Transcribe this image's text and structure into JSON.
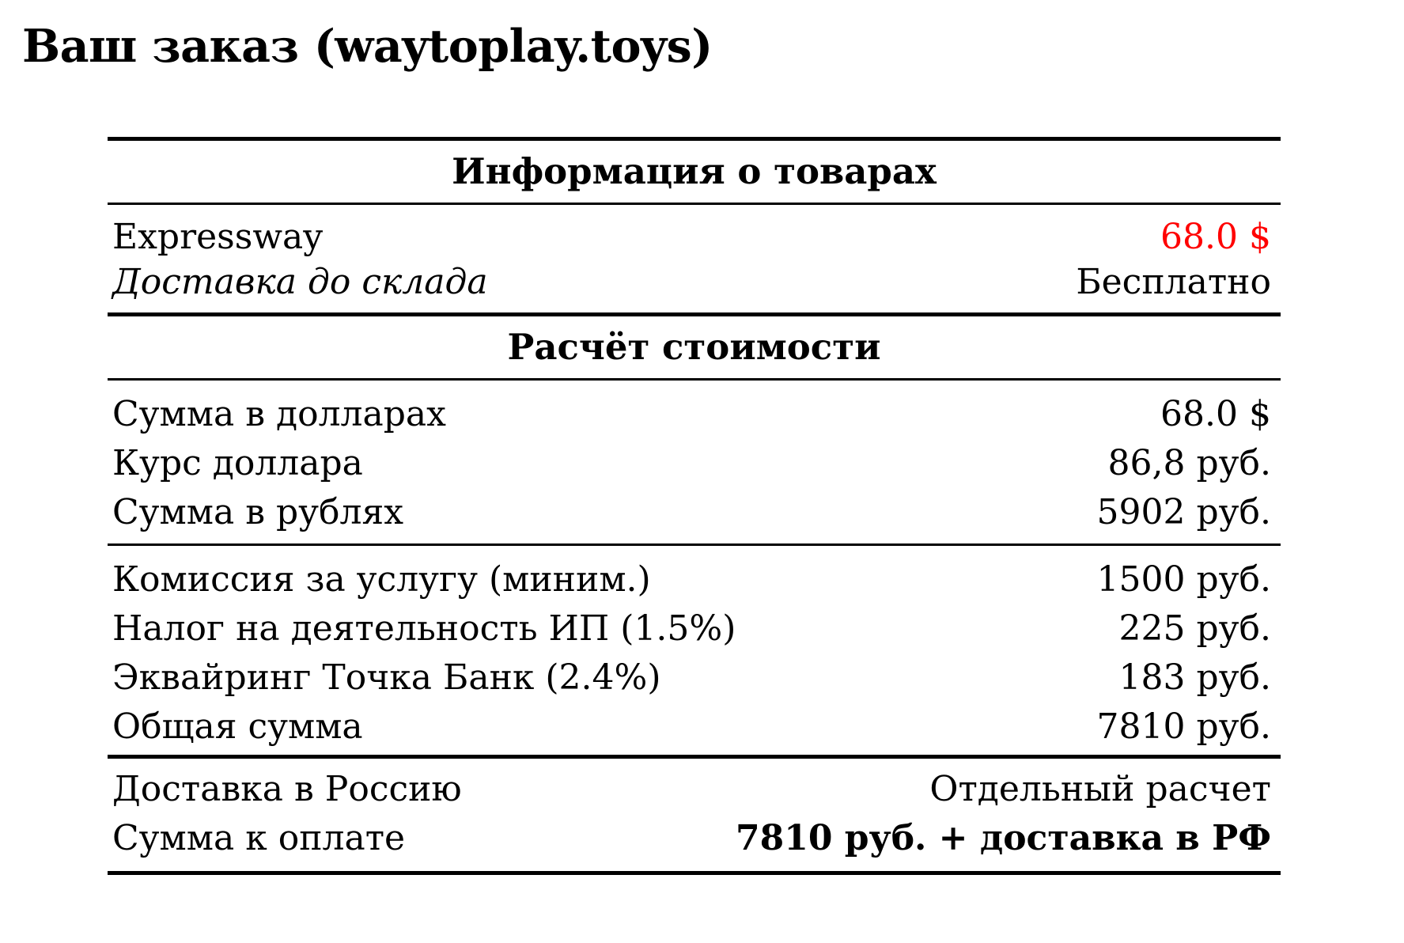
{
  "title": "Ваш заказ (waytoplay.toys)",
  "colors": {
    "background": "#ffffff",
    "text": "#000000",
    "rule": "#000000",
    "value_highlight": "#ff0000"
  },
  "table": {
    "section_products": {
      "header": "Информация о товарах",
      "rows": [
        {
          "label": "Expressway",
          "value": "68.0 $"
        },
        {
          "label": "Доставка до склада",
          "value": "Бесплатно"
        }
      ]
    },
    "section_cost": {
      "header": "Расчёт стоимости",
      "group_amounts": [
        {
          "label": "Сумма в долларах",
          "value": "68.0 $"
        },
        {
          "label": "Курс доллара",
          "value": "86,8 руб."
        },
        {
          "label": "Сумма в рублях",
          "value": "5902 руб."
        }
      ],
      "group_fees": [
        {
          "label": "Комиссия за услугу (миним.)",
          "value": "1500 руб."
        },
        {
          "label": "Налог на деятельность ИП (1.5%)",
          "value": "225 руб."
        },
        {
          "label": "Эквайринг Точка Банк (2.4%)",
          "value": "183 руб."
        },
        {
          "label": "Общая сумма",
          "value": "7810 руб."
        }
      ],
      "group_total": [
        {
          "label": "Доставка в Россию",
          "value": "Отдельный расчет"
        },
        {
          "label": "Сумма к оплате",
          "value": "7810 руб. + доставка в РФ"
        }
      ]
    }
  }
}
